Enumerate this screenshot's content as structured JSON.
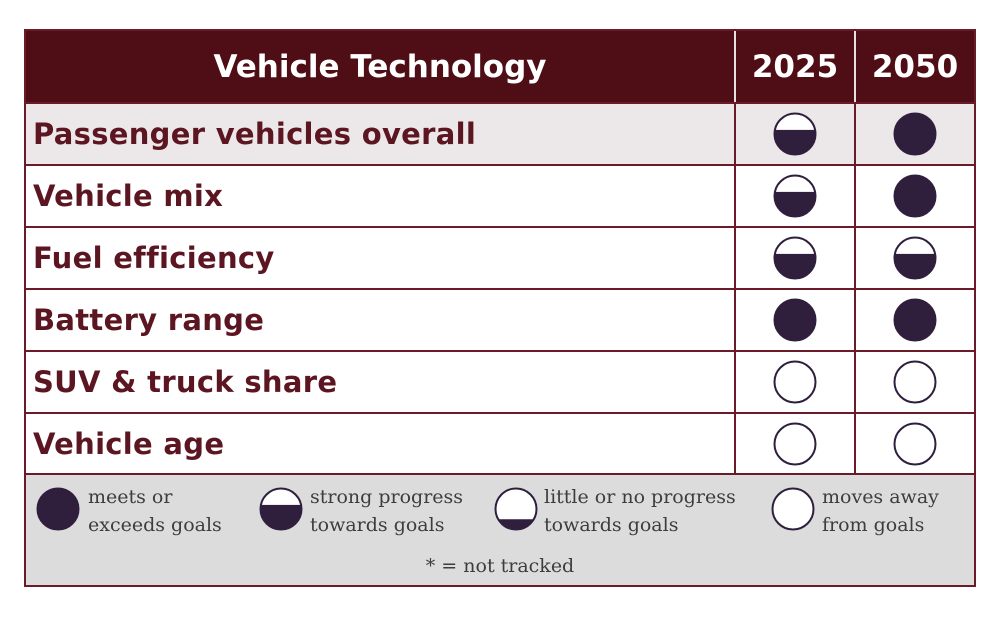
{
  "colors": {
    "header_bg": "#4f0d15",
    "row_label": "#5b1621",
    "border": "#6b1a27",
    "icon_fill": "#2f1f3d",
    "shaded_row": "#ece7e8",
    "legend_bg": "#dcdcdc"
  },
  "chart_data": {
    "type": "table",
    "title": "Vehicle Technology",
    "columns": [
      "2025",
      "2050"
    ],
    "rows": [
      {
        "label": "Passenger vehicles overall",
        "ratings": [
          "strong",
          "meets"
        ]
      },
      {
        "label": "Vehicle mix",
        "ratings": [
          "strong",
          "meets"
        ]
      },
      {
        "label": "Fuel efficiency",
        "ratings": [
          "strong",
          "strong"
        ]
      },
      {
        "label": "Battery range",
        "ratings": [
          "meets",
          "meets"
        ]
      },
      {
        "label": "SUV & truck share",
        "ratings": [
          "away",
          "away"
        ]
      },
      {
        "label": "Vehicle age",
        "ratings": [
          "away",
          "away"
        ]
      }
    ],
    "rating_fill": {
      "meets": 1.0,
      "strong": 0.6,
      "little": 0.25,
      "away": 0.0
    },
    "legend": [
      {
        "key": "meets",
        "line1": "meets or",
        "line2": "exceeds goals"
      },
      {
        "key": "strong",
        "line1": "strong progress",
        "line2": "towards goals"
      },
      {
        "key": "little",
        "line1": "little or no progress",
        "line2": "towards goals"
      },
      {
        "key": "away",
        "line1": "moves away",
        "line2": "from goals"
      }
    ],
    "footnote": "* = not tracked"
  }
}
